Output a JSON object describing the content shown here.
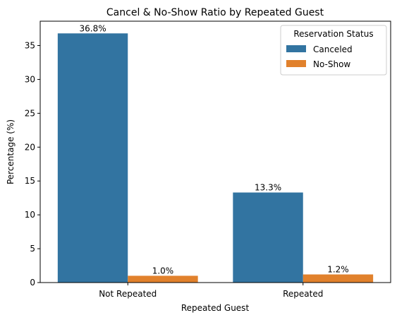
{
  "chart_data": {
    "type": "bar",
    "title": "Cancel & No-Show Ratio by Repeated Guest",
    "xlabel": "Repeated Guest",
    "ylabel": "Percentage (%)",
    "categories": [
      "Not Repeated",
      "Repeated"
    ],
    "ylim": [
      0,
      38.6
    ],
    "yticks": [
      "0",
      "5",
      "10",
      "15",
      "20",
      "25",
      "30",
      "35"
    ],
    "grid": false,
    "legend": {
      "title": "Reservation Status",
      "placement": "top-right"
    },
    "series": [
      {
        "name": "Canceled",
        "color": "#3274a1",
        "values": [
          36.8,
          13.3
        ],
        "labels": [
          "36.8%",
          "13.3%"
        ]
      },
      {
        "name": "No-Show",
        "color": "#e1812c",
        "values": [
          1.0,
          1.2
        ],
        "labels": [
          "1.0%",
          "1.2%"
        ]
      }
    ]
  }
}
